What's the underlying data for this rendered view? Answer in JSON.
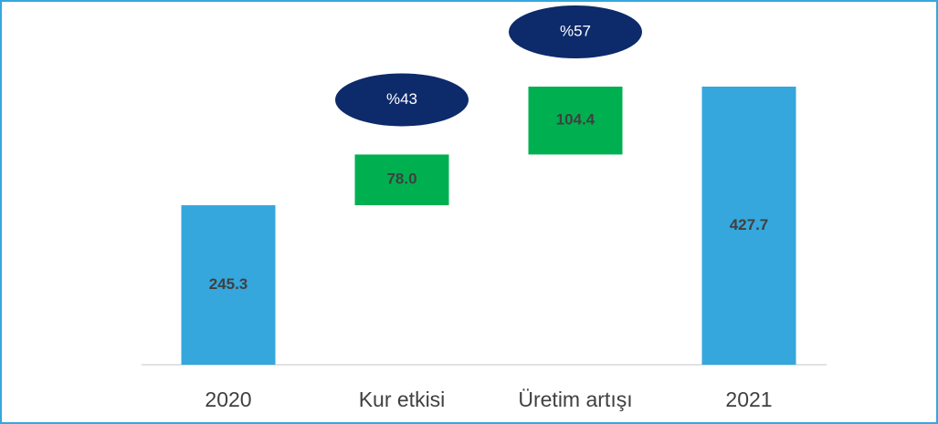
{
  "chart_data": {
    "type": "waterfall",
    "categories": [
      "2020",
      "Kur etkisi",
      "Üretim artışı",
      "2021"
    ],
    "values": [
      245.3,
      78.0,
      104.4,
      427.7
    ],
    "value_labels": [
      "245.3",
      "78.0",
      "104.4",
      "427.7"
    ],
    "is_total": [
      true,
      false,
      false,
      true
    ],
    "colors": [
      "#35a7dd",
      "#00b050",
      "#00b050",
      "#35a7dd"
    ],
    "shares": [
      null,
      43,
      57,
      null
    ],
    "share_labels": [
      null,
      "%43",
      "%57",
      null
    ],
    "share_color": "#0d2a6b"
  }
}
